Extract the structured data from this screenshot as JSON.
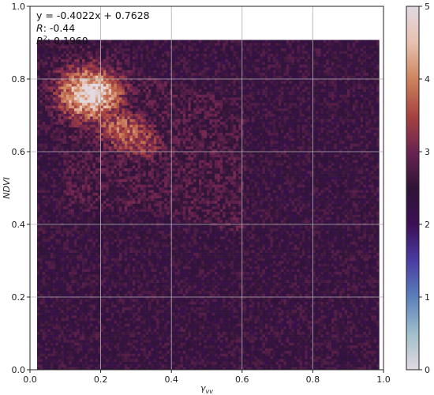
{
  "chart_data": {
    "type": "heatmap",
    "title": "",
    "xlabel": "γ",
    "xlabel_sub": "vv",
    "ylabel": "NDVI",
    "xlim": [
      0.0,
      1.0
    ],
    "ylim": [
      0.0,
      1.0
    ],
    "x_ticks": [
      "0.0",
      "0.2",
      "0.4",
      "0.6",
      "0.8",
      "1.0"
    ],
    "y_ticks": [
      "0.0",
      "0.2",
      "0.4",
      "0.6",
      "0.8",
      "1.0"
    ],
    "grid": true,
    "annotation": {
      "equation": "y = -0.4022x + 0.7628",
      "r_label": "R",
      "r_value": ": -0.44",
      "r2_label": "R",
      "r2_sup": "2",
      "r2_value": ": 0.1960"
    },
    "regression": {
      "slope": -0.4022,
      "intercept": 0.7628,
      "r": -0.44,
      "r2": 0.196
    },
    "colorbar": {
      "min": 0,
      "max": 5,
      "ticks": [
        "0",
        "1",
        "2",
        "3",
        "4",
        "5"
      ],
      "colormap": "twilight_shifted",
      "stops": [
        "#e2d9e2",
        "#9fbfcb",
        "#5a80bb",
        "#4a3ca3",
        "#3c0f55",
        "#2f1436",
        "#6a2351",
        "#a8433f",
        "#cd845e",
        "#e7c1b0",
        "#e2d9e2"
      ]
    },
    "density_description": {
      "peak": {
        "x": 0.17,
        "y": 0.76,
        "value": 4.9
      },
      "body": {
        "x_range": [
          0.05,
          0.75
        ],
        "y_range": [
          0.2,
          0.87
        ]
      },
      "outliers": [
        {
          "x": 0.15,
          "y": 0.14,
          "value": 1.5
        },
        {
          "x": 0.7,
          "y": 0.3,
          "value": 2.3
        },
        {
          "x": 0.25,
          "y": 0.02,
          "value": 0.8
        }
      ]
    }
  }
}
